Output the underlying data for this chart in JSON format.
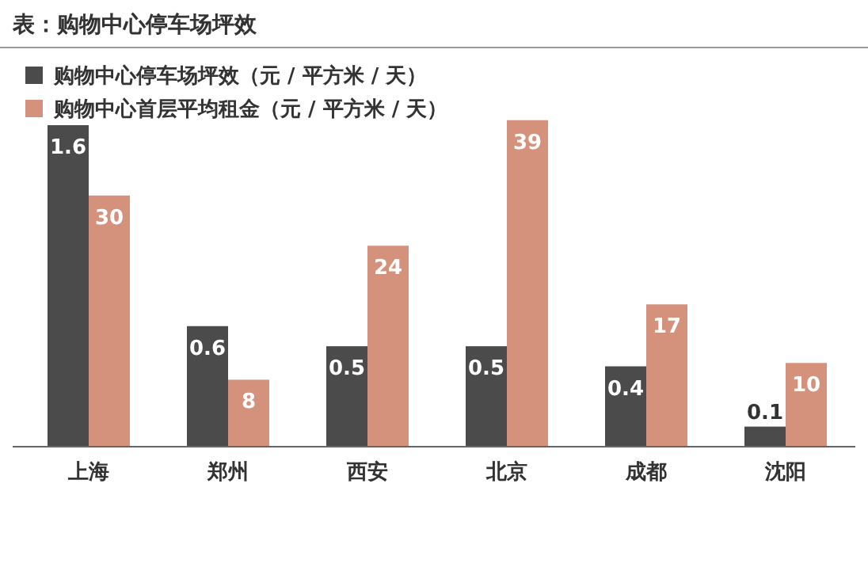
{
  "chart_data": {
    "type": "bar",
    "title": "表：购物中心停车场坪效",
    "categories": [
      "上海",
      "郑州",
      "西安",
      "北京",
      "成都",
      "沈阳"
    ],
    "series": [
      {
        "name": "购物中心停车场坪效（元 / 平方米 / 天）",
        "color": "#4b4b4b",
        "values": [
          1.6,
          0.6,
          0.5,
          0.5,
          0.4,
          0.1
        ]
      },
      {
        "name": "购物中心首层平均租金（元 / 平方米 / 天）",
        "color": "#d4917c",
        "values": [
          30,
          8,
          24,
          39,
          17,
          10
        ],
        "axis": "y2"
      }
    ],
    "ylim": [
      0,
      1.75
    ],
    "y2lim": [
      0,
      42
    ],
    "legend": "top left",
    "data_labels": true
  }
}
